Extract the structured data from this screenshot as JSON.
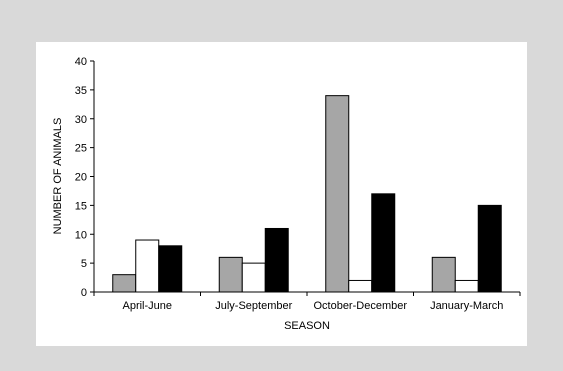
{
  "chart_data": {
    "type": "bar",
    "xlabel": "SEASON",
    "ylabel": "NUMBER OF ANIMALS",
    "ylim": [
      0,
      40
    ],
    "yticks": [
      "0",
      "5",
      "10",
      "15",
      "20",
      "25",
      "30",
      "35",
      "40"
    ],
    "categories": [
      "April-June",
      "July-September",
      "October-December",
      "January-March"
    ],
    "series": [
      {
        "color": "#a6a6a6",
        "values": [
          3,
          6,
          34,
          6
        ]
      },
      {
        "color": "#ffffff",
        "values": [
          9,
          5,
          2,
          2
        ]
      },
      {
        "color": "#000000",
        "values": [
          8,
          11,
          17,
          15
        ]
      }
    ],
    "grid": false,
    "legend": "none",
    "background": "#d9d9d9",
    "panel_color": "#ffffff"
  }
}
